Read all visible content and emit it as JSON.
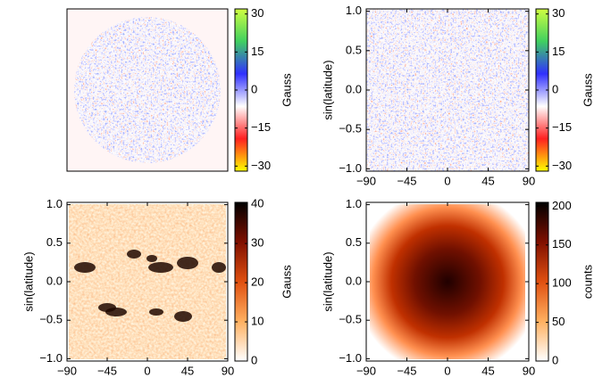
{
  "chart_data": [
    {
      "type": "heatmap",
      "cbar_label": "Gauss",
      "clim": [
        -32,
        32
      ],
      "cticks": [
        {
          "value": -30,
          "label": "−30"
        },
        {
          "value": -15,
          "label": "−15"
        },
        0,
        15,
        30
      ],
      "colormap": [
        "#ffff00",
        "#ff2020",
        "#ffffff",
        "#3030ff",
        "#40d060",
        "#d0ff40"
      ]
    },
    {
      "type": "heatmap",
      "ylabel": "sin(latitude)",
      "cbar_label": "Gauss",
      "clim": [
        -32,
        32
      ],
      "cticks": [
        {
          "value": -30,
          "label": "−30"
        },
        {
          "value": -15,
          "label": "−15"
        },
        0,
        15,
        30
      ],
      "colormap": [
        "#ffff00",
        "#ff2020",
        "#ffffff",
        "#3030ff",
        "#40d060",
        "#d0ff40"
      ],
      "xlim": [
        -90,
        90
      ],
      "xticks": [
        {
          "value": -90,
          "label": "−90"
        },
        {
          "value": -45,
          "label": "−45"
        },
        0,
        45,
        90
      ],
      "ylim": [
        -1.03,
        1.03
      ],
      "yticks": [
        {
          "value": -1,
          "label": "−1.0"
        },
        {
          "value": -0.5,
          "label": "−0.5"
        },
        {
          "value": 0,
          "label": "0.0"
        },
        0.5,
        {
          "value": 1,
          "label": "1.0"
        }
      ]
    },
    {
      "type": "heatmap",
      "ylabel": "sin(latitude)",
      "cbar_label": "Gauss",
      "clim": [
        0,
        40.5
      ],
      "cticks": [
        0,
        10,
        20,
        30,
        40
      ],
      "colormap": [
        "#ffffff",
        "#ffb060",
        "#e05010",
        "#801000",
        "#000000"
      ],
      "xlim": [
        -90,
        90
      ],
      "xticks": [
        {
          "value": -90,
          "label": "−90"
        },
        {
          "value": -45,
          "label": "−45"
        },
        0,
        45,
        90
      ],
      "ylim": [
        -1.03,
        1.03
      ],
      "yticks": [
        {
          "value": -1,
          "label": "−1.0"
        },
        {
          "value": -0.5,
          "label": "−0.5"
        },
        {
          "value": 0,
          "label": "0.0"
        },
        0.5,
        {
          "value": 1,
          "label": "1.0"
        }
      ]
    },
    {
      "type": "heatmap",
      "ylabel": "sin(latitude)",
      "cbar_label": "counts",
      "clim": [
        0,
        205
      ],
      "cticks": [
        0,
        50,
        100,
        150,
        200
      ],
      "colormap": [
        "#ffffff",
        "#ffb060",
        "#e05010",
        "#801000",
        "#000000"
      ],
      "xlim": [
        -90,
        90
      ],
      "xticks": [
        {
          "value": -90,
          "label": "−90"
        },
        {
          "value": -45,
          "label": "−45"
        },
        0,
        45,
        90
      ],
      "ylim": [
        -1.03,
        1.03
      ],
      "yticks": [
        {
          "value": -1,
          "label": "−1.0"
        },
        {
          "value": -0.5,
          "label": "−0.5"
        },
        {
          "value": 0,
          "label": "0.0"
        },
        0.5,
        {
          "value": 1,
          "label": "1.0"
        }
      ]
    }
  ]
}
